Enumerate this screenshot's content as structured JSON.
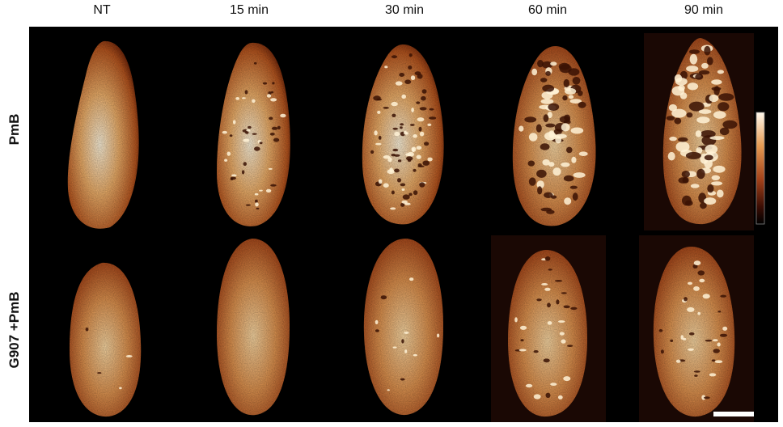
{
  "columns": [
    "NT",
    "15 min",
    "30 min",
    "60 min",
    "90 min"
  ],
  "rows": [
    "PmB",
    "G907 +PmB"
  ],
  "colors": {
    "background": "#000000",
    "cell_bright": "#fff4dc",
    "cell_mid": "#e8a15a",
    "cell_dark": "#7a2e0c",
    "scale_bar": "#ffffff"
  },
  "colorbar": {
    "present": true,
    "gradient": [
      "#fff8ec",
      "#e59a52",
      "#a3421a",
      "#3a0d04",
      "#000000"
    ]
  },
  "scale_bar": {
    "present": true
  }
}
